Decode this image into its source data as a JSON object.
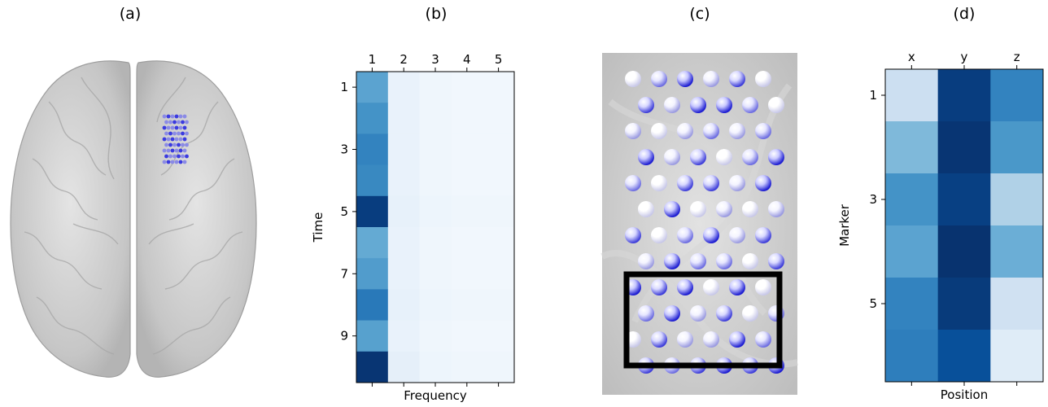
{
  "panels": {
    "a": {
      "label": "(a)"
    },
    "b": {
      "label": "(b)"
    },
    "c": {
      "label": "(c)"
    },
    "d": {
      "label": "(d)"
    }
  },
  "colors": {
    "brain": "#c9c9c9",
    "electrode": "#4a4ad8",
    "highlight_box": "#000000"
  },
  "chart_data": [
    {
      "panel": "b",
      "type": "heatmap",
      "xlabel": "Frequency",
      "ylabel": "Time",
      "x_ticks": [
        "1",
        "2",
        "3",
        "4",
        "5"
      ],
      "y_ticks": [
        "1",
        "3",
        "5",
        "7",
        "9"
      ],
      "cols": [
        "1",
        "2",
        "3",
        "4",
        "5"
      ],
      "rows": [
        "1",
        "2",
        "3",
        "4",
        "5",
        "6",
        "7",
        "8",
        "9",
        "10"
      ],
      "colormap": "Blues",
      "values": [
        [
          0.55,
          0.07,
          0.04,
          0.03,
          0.03
        ],
        [
          0.62,
          0.07,
          0.04,
          0.03,
          0.03
        ],
        [
          0.68,
          0.07,
          0.04,
          0.03,
          0.03
        ],
        [
          0.66,
          0.07,
          0.04,
          0.03,
          0.03
        ],
        [
          0.95,
          0.08,
          0.05,
          0.04,
          0.04
        ],
        [
          0.52,
          0.07,
          0.04,
          0.03,
          0.03
        ],
        [
          0.58,
          0.07,
          0.04,
          0.03,
          0.03
        ],
        [
          0.72,
          0.08,
          0.05,
          0.04,
          0.04
        ],
        [
          0.56,
          0.07,
          0.04,
          0.03,
          0.03
        ],
        [
          0.98,
          0.09,
          0.05,
          0.04,
          0.04
        ]
      ]
    },
    {
      "panel": "d",
      "type": "heatmap",
      "xlabel": "Position",
      "ylabel": "Marker",
      "x_ticks": [
        "x",
        "y",
        "z"
      ],
      "y_ticks": [
        "1",
        "3",
        "5"
      ],
      "cols": [
        "x",
        "y",
        "z"
      ],
      "rows": [
        "1",
        "2",
        "3",
        "4",
        "5",
        "6"
      ],
      "colormap": "Blues",
      "values": [
        [
          0.22,
          0.95,
          0.68
        ],
        [
          0.45,
          0.98,
          0.6
        ],
        [
          0.62,
          0.94,
          0.32
        ],
        [
          0.55,
          0.99,
          0.5
        ],
        [
          0.68,
          0.96,
          0.2
        ],
        [
          0.7,
          0.88,
          0.12
        ]
      ]
    }
  ]
}
